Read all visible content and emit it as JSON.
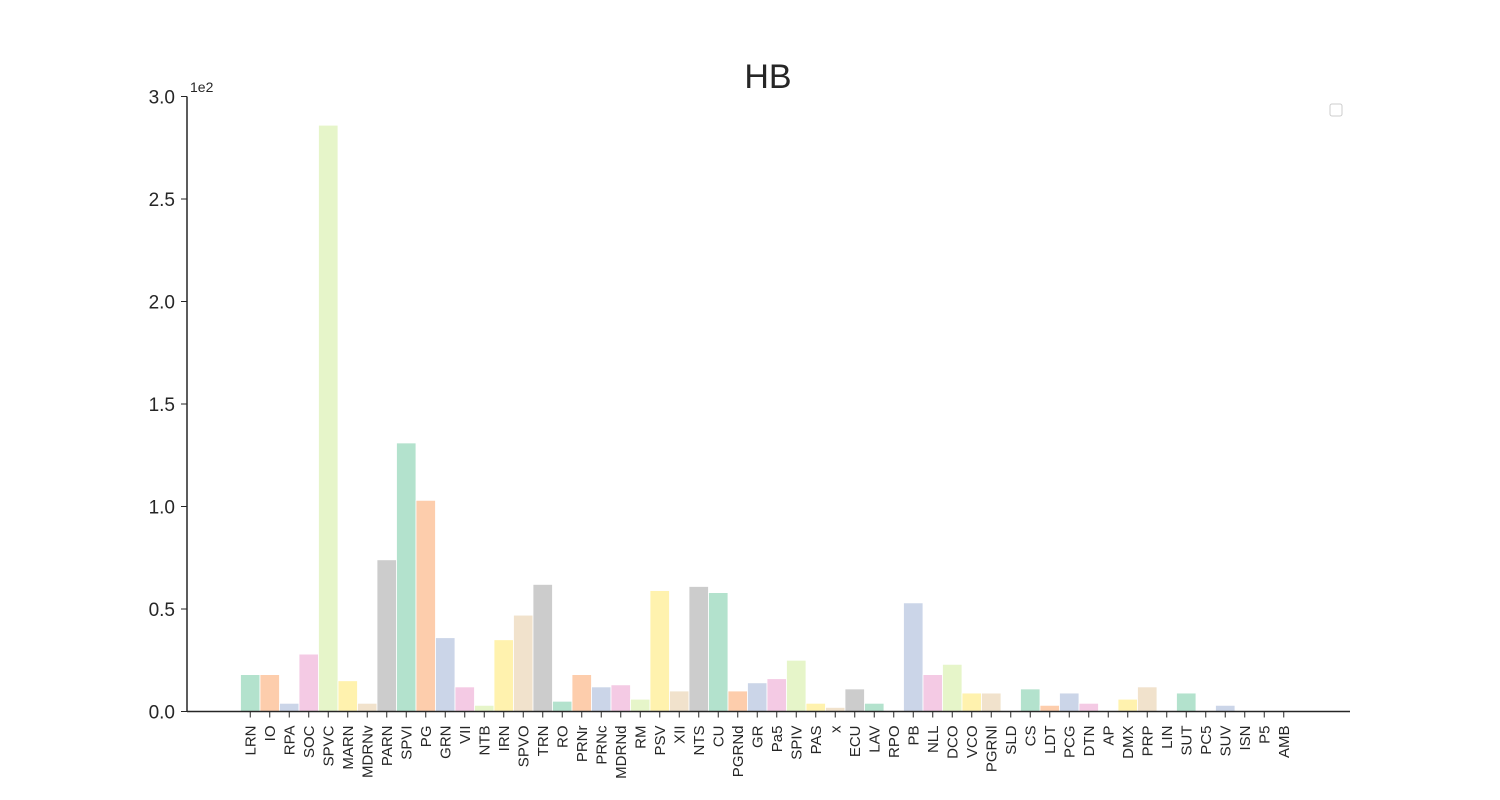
{
  "chart_data": {
    "type": "bar",
    "title": "HB",
    "xlabel": "",
    "ylabel": "",
    "y_scale_label": "1e2",
    "ylim": [
      0,
      3.0
    ],
    "yticks": [
      "0.0",
      "0.5",
      "1.0",
      "1.5",
      "2.0",
      "2.5",
      "3.0"
    ],
    "legend": "top-right",
    "grid": false,
    "categories": [
      "LRN",
      "IO",
      "RPA",
      "SOC",
      "SPVC",
      "MARN",
      "MDRNv",
      "PARN",
      "SPVI",
      "PG",
      "GRN",
      "VII",
      "NTB",
      "IRN",
      "SPVO",
      "TRN",
      "RO",
      "PRNr",
      "PRNc",
      "MDRNd",
      "RM",
      "PSV",
      "XII",
      "NTS",
      "CU",
      "PGRNd",
      "GR",
      "Pa5",
      "SPIV",
      "PAS",
      "x",
      "ECU",
      "LAV",
      "RPO",
      "PB",
      "NLL",
      "DCO",
      "VCO",
      "PGRNl",
      "SLD",
      "CS",
      "LDT",
      "PCG",
      "DTN",
      "AP",
      "DMX",
      "PRP",
      "LIN",
      "SUT",
      "PC5",
      "SUV",
      "ISN",
      "P5",
      "AMB"
    ],
    "values": [
      0.18,
      0.18,
      0.04,
      0.28,
      2.86,
      0.15,
      0.04,
      0.74,
      1.31,
      1.03,
      0.36,
      0.12,
      0.03,
      0.35,
      0.47,
      0.62,
      0.05,
      0.18,
      0.12,
      0.13,
      0.06,
      0.59,
      0.1,
      0.61,
      0.58,
      0.1,
      0.14,
      0.16,
      0.25,
      0.04,
      0.02,
      0.11,
      0.04,
      0.0,
      0.53,
      0.18,
      0.23,
      0.09,
      0.09,
      0.0,
      0.11,
      0.03,
      0.09,
      0.04,
      0.0,
      0.06,
      0.12,
      0.0,
      0.09,
      0.0,
      0.03,
      0.0,
      0.0,
      0.0
    ],
    "colors": [
      "#b3e2cd",
      "#fdcdac",
      "#cbd5e8",
      "#f4cae4",
      "#e6f5c9",
      "#fff2ae",
      "#f1e2cc",
      "#cccccc"
    ]
  }
}
